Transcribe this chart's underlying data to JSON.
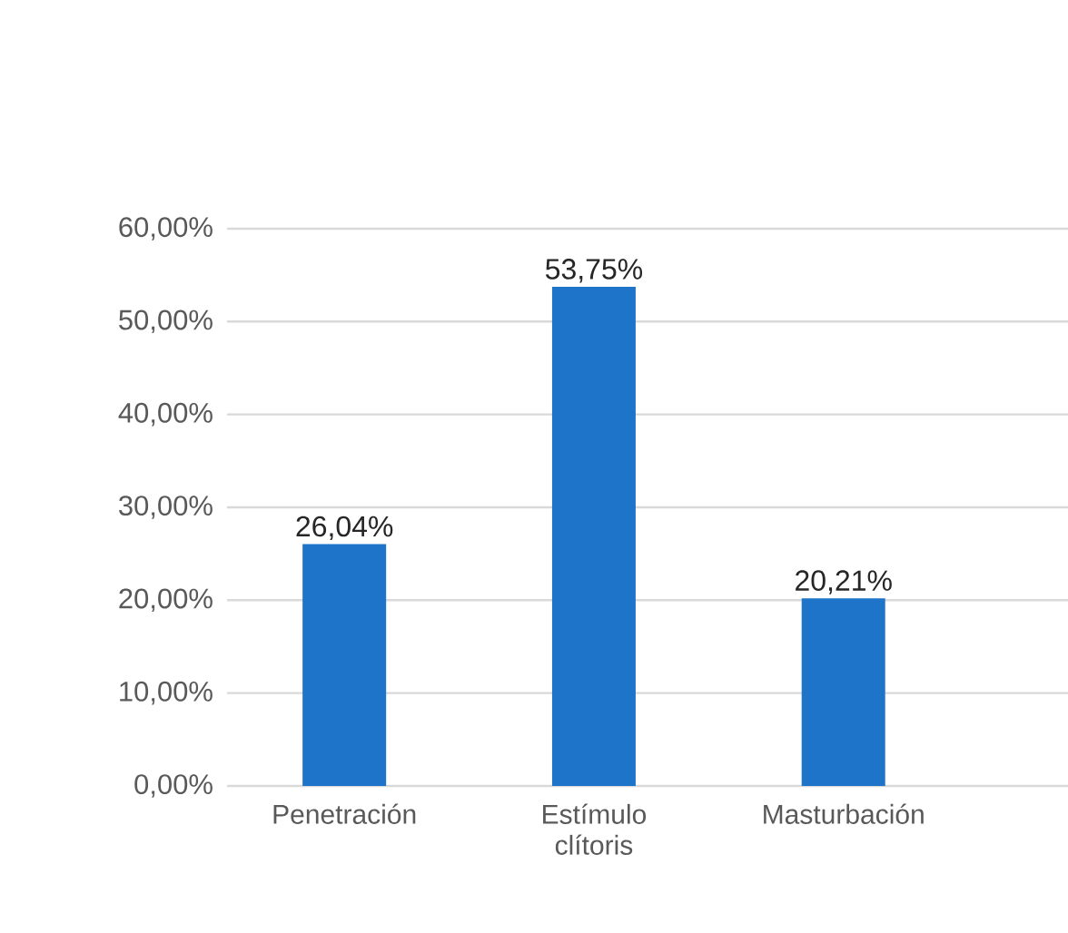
{
  "chart_data": {
    "type": "bar",
    "categories": [
      "Penetración",
      "Estímulo clítoris",
      "Masturbación"
    ],
    "values": [
      26.04,
      53.75,
      20.21
    ],
    "value_labels": [
      "26,04%",
      "53,75%",
      "20,21%"
    ],
    "color": "#1e74c8",
    "ylim": [
      0,
      60
    ],
    "yticks": [
      {
        "value": 0,
        "label": "0,00%"
      },
      {
        "value": 10,
        "label": "10,00%"
      },
      {
        "value": 20,
        "label": "20,00%"
      },
      {
        "value": 30,
        "label": "30,00%"
      },
      {
        "value": 40,
        "label": "40,00%"
      },
      {
        "value": 50,
        "label": "50,00%"
      },
      {
        "value": 60,
        "label": "60,00%"
      }
    ],
    "grid": "y"
  }
}
